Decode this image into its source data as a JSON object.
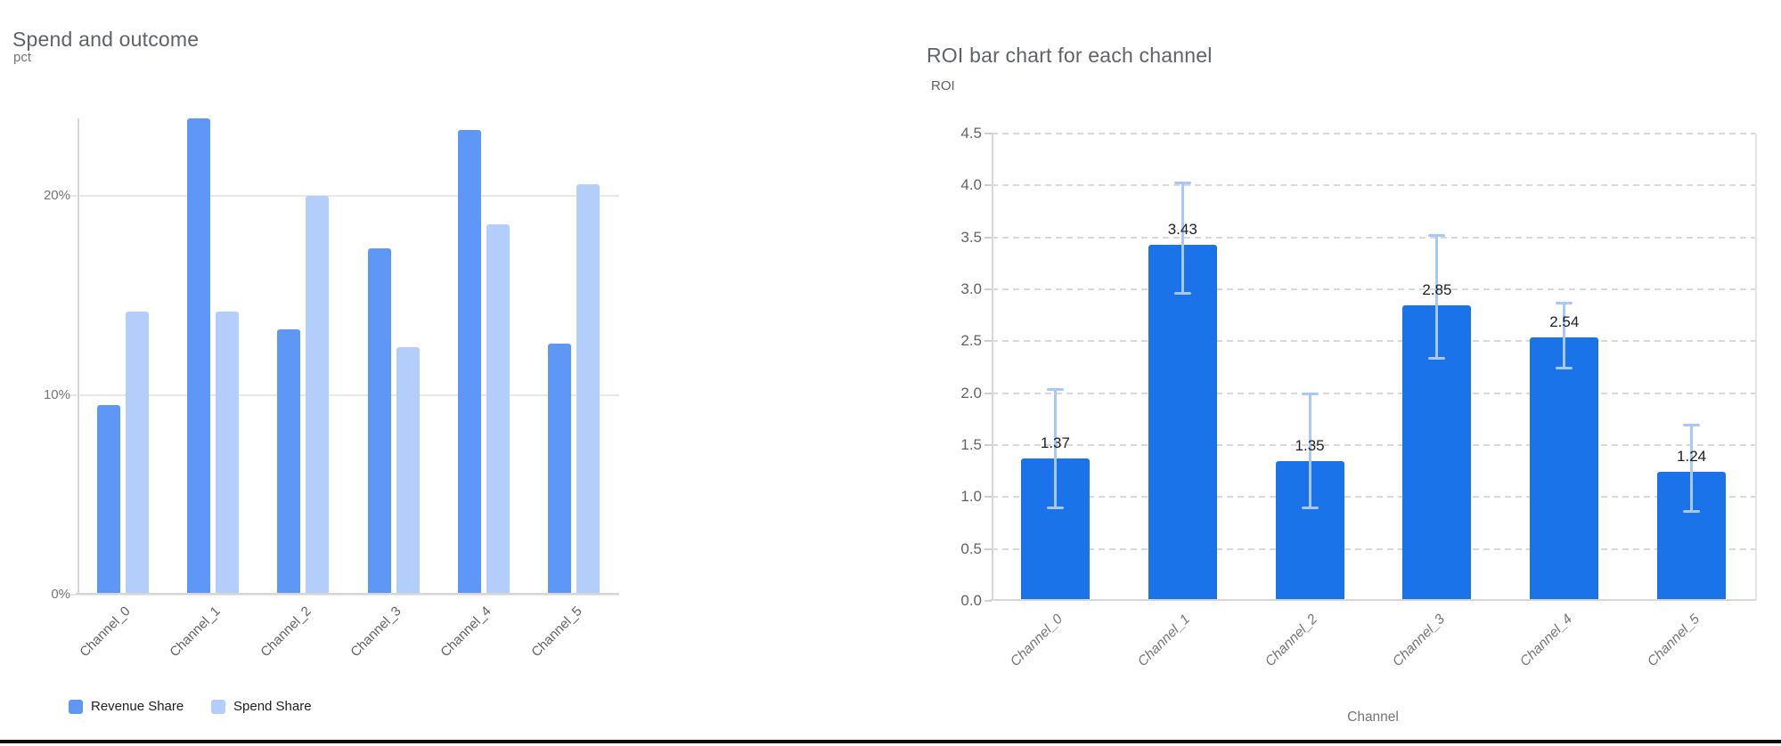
{
  "page": {
    "background": "#ffffff",
    "bottom_border_color": "#0b0b0b"
  },
  "chart_data": [
    {
      "type": "bar",
      "title": "Spend and outcome",
      "ylabel": "pct",
      "xlabel": "",
      "categories": [
        "Channel_0",
        "Channel_1",
        "Channel_2",
        "Channel_3",
        "Channel_4",
        "Channel_5"
      ],
      "series": [
        {
          "name": "Revenue Share",
          "color": "#5e97f6",
          "values": [
            9.5,
            23.9,
            13.3,
            17.4,
            23.3,
            12.6
          ]
        },
        {
          "name": "Spend Share",
          "color": "#b3cefb",
          "values": [
            14.2,
            14.2,
            20.0,
            12.4,
            18.6,
            20.6
          ]
        }
      ],
      "y_tick_values": [
        0,
        10,
        20
      ],
      "y_tick_labels": [
        "0%",
        "10%",
        "20%"
      ],
      "ylim": [
        0,
        23.9
      ],
      "grid": "solid-horizontal",
      "legend_position": "bottom-left",
      "x_label_rotation_deg": -45
    },
    {
      "type": "bar",
      "title": "ROI bar chart for each channel",
      "ylabel": "ROI",
      "xlabel": "Channel",
      "categories": [
        "Channel_0",
        "Channel_1",
        "Channel_2",
        "Channel_3",
        "Channel_4",
        "Channel_5"
      ],
      "values": [
        1.37,
        3.43,
        1.35,
        2.85,
        2.54,
        1.24
      ],
      "data_labels": [
        "1.37",
        "3.43",
        "1.35",
        "2.85",
        "2.54",
        "1.24"
      ],
      "error_low": [
        0.89,
        2.96,
        0.89,
        2.33,
        2.24,
        0.86
      ],
      "error_high": [
        2.04,
        4.03,
        2.0,
        3.52,
        2.87,
        1.7
      ],
      "bar_color": "#1a73e8",
      "error_bar_color": "#a8c7fa",
      "y_tick_values": [
        0,
        0.5,
        1.0,
        1.5,
        2.0,
        2.5,
        3.0,
        3.5,
        4.0,
        4.5
      ],
      "y_tick_labels": [
        "0.0",
        "0.5",
        "1.0",
        "1.5",
        "2.0",
        "2.5",
        "3.0",
        "3.5",
        "4.0",
        "4.5"
      ],
      "ylim": [
        0,
        4.5
      ],
      "grid": "dashed-horizontal",
      "legend_position": "none",
      "x_label_rotation_deg": -45
    }
  ]
}
